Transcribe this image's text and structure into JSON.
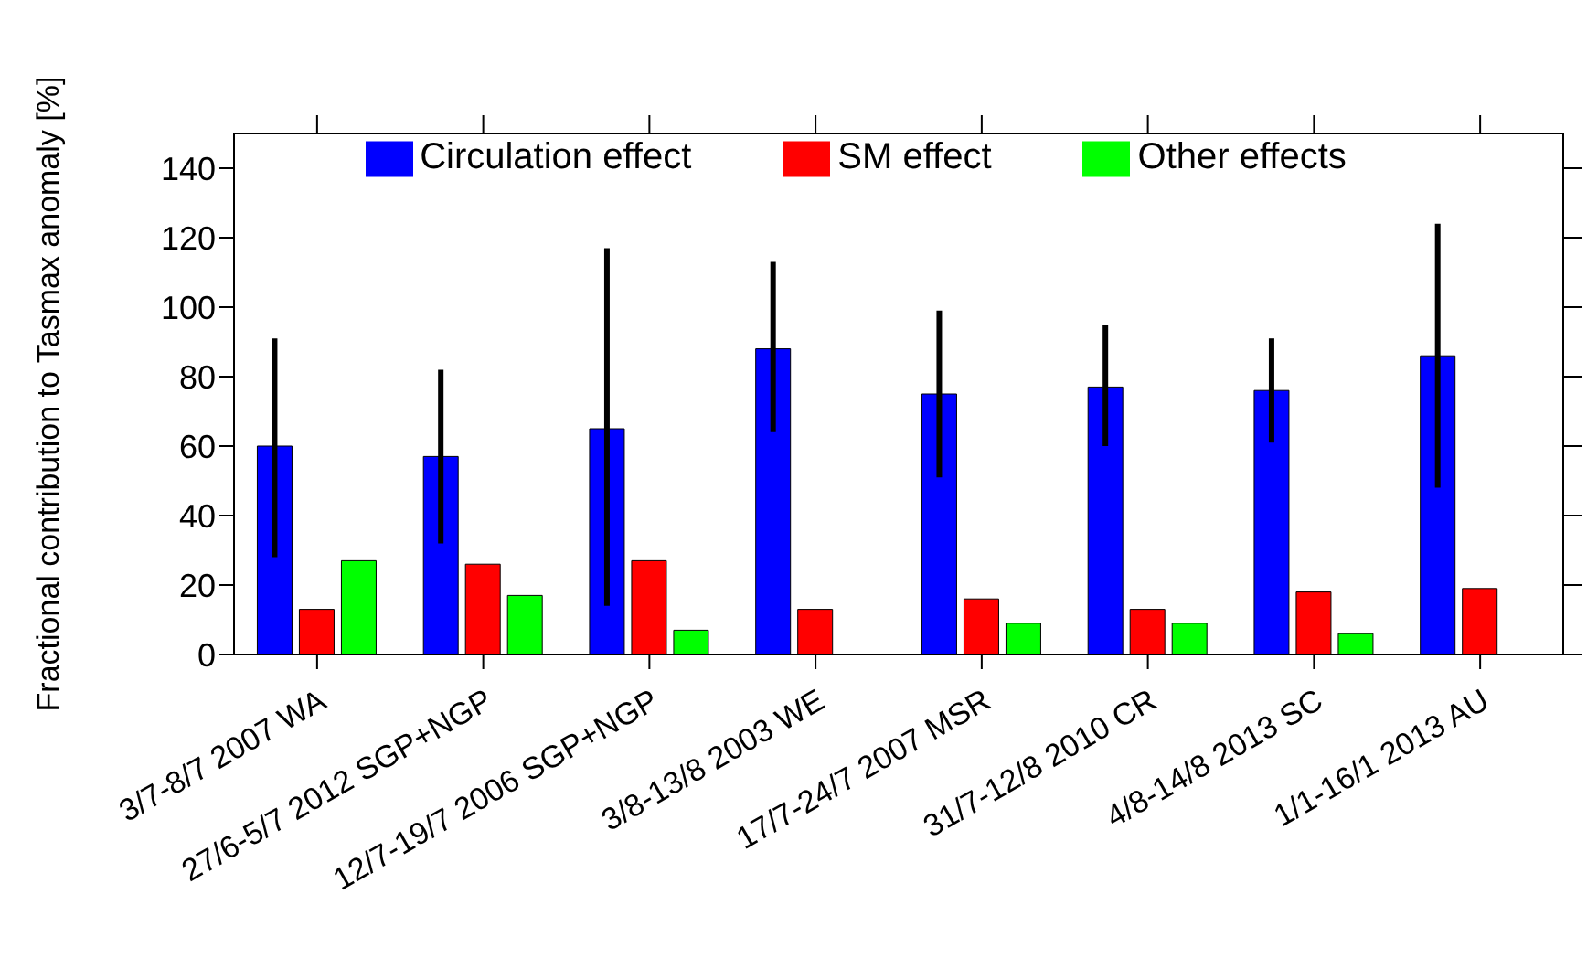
{
  "chart_data": {
    "type": "bar",
    "ylabel": "Fractional contribution to Tasmax anomaly [%]",
    "categories": [
      "3/7-8/7 2007 WA",
      "27/6-5/7 2012 SGP+NGP",
      "12/7-19/7 2006 SGP+NGP",
      "3/8-13/8 2003 WE",
      "17/7-24/7 2007 MSR",
      "31/7-12/8 2010 CR",
      "4/8-14/8 2013 SC",
      "1/1-16/1 2013 AU"
    ],
    "series": [
      {
        "name": "Circulation effect",
        "color": "#0000ff",
        "values": [
          60,
          57,
          65,
          88,
          75,
          77,
          76,
          86
        ],
        "errors": [
          [
            28,
            91
          ],
          [
            32,
            82
          ],
          [
            14,
            117
          ],
          [
            64,
            113
          ],
          [
            51,
            99
          ],
          [
            60,
            95
          ],
          [
            61,
            91
          ],
          [
            48,
            124
          ]
        ]
      },
      {
        "name": "SM effect",
        "color": "#ff0000",
        "values": [
          13,
          26,
          27,
          13,
          16,
          13,
          18,
          19
        ]
      },
      {
        "name": "Other effects",
        "color": "#00ff00",
        "values": [
          27,
          17,
          7,
          null,
          9,
          9,
          6,
          null
        ]
      }
    ],
    "ylim": [
      0,
      150
    ],
    "yticks": [
      0,
      20,
      40,
      60,
      80,
      100,
      120,
      140
    ],
    "legend": "top"
  }
}
